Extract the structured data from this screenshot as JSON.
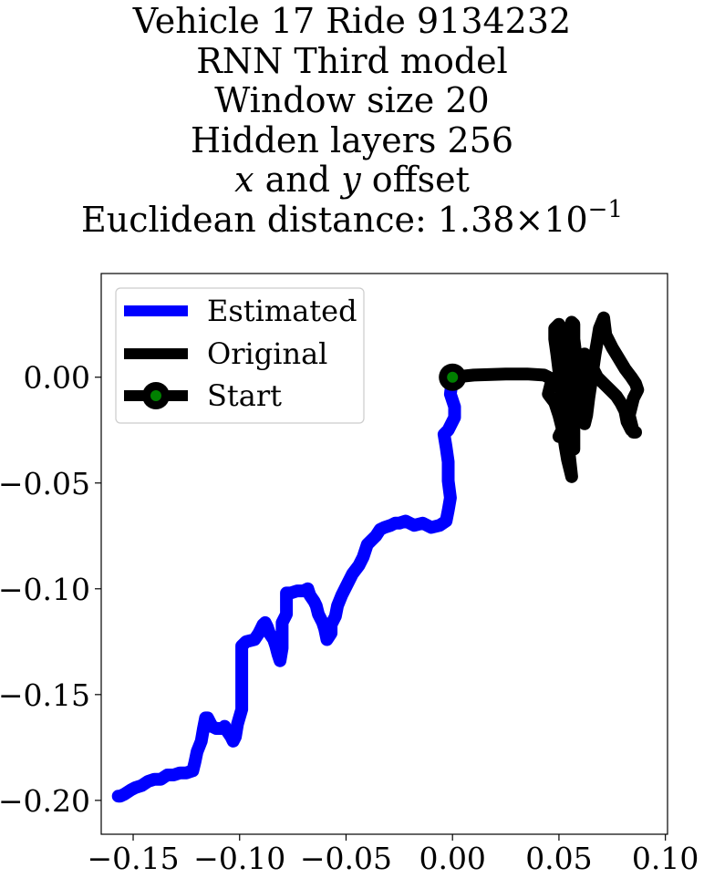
{
  "chart_data": {
    "type": "line",
    "title_lines": [
      "Vehicle 17 Ride 9134232",
      "RNN Third model",
      "Window size 20",
      "Hidden layers 256"
    ],
    "offset_line": {
      "x_var": "x",
      "and": "and",
      "y_var": "y",
      "rest": "offset"
    },
    "distance_line": {
      "prefix": "Euclidean distance: ",
      "mantissa": "1.38",
      "times": "×",
      "base": "10",
      "exponent": "−1"
    },
    "xlabel": "",
    "ylabel": "",
    "xlim": [
      -0.165,
      0.101
    ],
    "ylim": [
      -0.216,
      0.049
    ],
    "xticks": [
      -0.15,
      -0.1,
      -0.05,
      0.0,
      0.05,
      0.1
    ],
    "xtick_labels": [
      "−0.15",
      "−0.10",
      "−0.05",
      "0.00",
      "0.05",
      "0.10"
    ],
    "yticks": [
      0.0,
      -0.05,
      -0.1,
      -0.15,
      -0.2
    ],
    "ytick_labels": [
      "0.00",
      "−0.05",
      "−0.10",
      "−0.15",
      "−0.20"
    ],
    "grid": false,
    "legend_position": "top-left",
    "series": [
      {
        "name": "Estimated",
        "color": "#0000ff",
        "points": [
          [
            0.0,
            0.0
          ],
          [
            -0.001,
            -0.008
          ],
          [
            0.001,
            -0.014
          ],
          [
            0.001,
            -0.019
          ],
          [
            -0.002,
            -0.025
          ],
          [
            -0.004,
            -0.027
          ],
          [
            -0.003,
            -0.033
          ],
          [
            -0.002,
            -0.04
          ],
          [
            -0.002,
            -0.049
          ],
          [
            -0.001,
            -0.057
          ],
          [
            -0.002,
            -0.063
          ],
          [
            -0.003,
            -0.068
          ],
          [
            -0.006,
            -0.07
          ],
          [
            -0.01,
            -0.071
          ],
          [
            -0.014,
            -0.069
          ],
          [
            -0.018,
            -0.07
          ],
          [
            -0.022,
            -0.068
          ],
          [
            -0.025,
            -0.069
          ],
          [
            -0.027,
            -0.069
          ],
          [
            -0.029,
            -0.07
          ],
          [
            -0.032,
            -0.071
          ],
          [
            -0.034,
            -0.072
          ],
          [
            -0.036,
            -0.075
          ],
          [
            -0.04,
            -0.079
          ],
          [
            -0.042,
            -0.085
          ],
          [
            -0.044,
            -0.089
          ],
          [
            -0.047,
            -0.093
          ],
          [
            -0.049,
            -0.097
          ],
          [
            -0.052,
            -0.103
          ],
          [
            -0.054,
            -0.108
          ],
          [
            -0.055,
            -0.113
          ],
          [
            -0.057,
            -0.117
          ],
          [
            -0.057,
            -0.121
          ],
          [
            -0.059,
            -0.124
          ],
          [
            -0.06,
            -0.119
          ],
          [
            -0.061,
            -0.116
          ],
          [
            -0.063,
            -0.112
          ],
          [
            -0.064,
            -0.108
          ],
          [
            -0.065,
            -0.106
          ],
          [
            -0.067,
            -0.103
          ],
          [
            -0.068,
            -0.1
          ],
          [
            -0.07,
            -0.101
          ],
          [
            -0.073,
            -0.101
          ],
          [
            -0.076,
            -0.102
          ],
          [
            -0.078,
            -0.102
          ],
          [
            -0.078,
            -0.108
          ],
          [
            -0.078,
            -0.112
          ],
          [
            -0.08,
            -0.116
          ],
          [
            -0.08,
            -0.121
          ],
          [
            -0.08,
            -0.128
          ],
          [
            -0.081,
            -0.134
          ],
          [
            -0.082,
            -0.131
          ],
          [
            -0.083,
            -0.127
          ],
          [
            -0.084,
            -0.124
          ],
          [
            -0.086,
            -0.121
          ],
          [
            -0.087,
            -0.118
          ],
          [
            -0.088,
            -0.116
          ],
          [
            -0.089,
            -0.117
          ],
          [
            -0.09,
            -0.119
          ],
          [
            -0.091,
            -0.121
          ],
          [
            -0.093,
            -0.124
          ],
          [
            -0.097,
            -0.125
          ],
          [
            -0.099,
            -0.127
          ],
          [
            -0.099,
            -0.132
          ],
          [
            -0.099,
            -0.138
          ],
          [
            -0.099,
            -0.146
          ],
          [
            -0.099,
            -0.152
          ],
          [
            -0.099,
            -0.157
          ],
          [
            -0.101,
            -0.164
          ],
          [
            -0.102,
            -0.17
          ],
          [
            -0.103,
            -0.172
          ],
          [
            -0.104,
            -0.17
          ],
          [
            -0.106,
            -0.167
          ],
          [
            -0.107,
            -0.165
          ],
          [
            -0.108,
            -0.166
          ],
          [
            -0.109,
            -0.166
          ],
          [
            -0.111,
            -0.166
          ],
          [
            -0.113,
            -0.165
          ],
          [
            -0.115,
            -0.161
          ],
          [
            -0.116,
            -0.161
          ],
          [
            -0.117,
            -0.166
          ],
          [
            -0.118,
            -0.172
          ],
          [
            -0.12,
            -0.177
          ],
          [
            -0.121,
            -0.182
          ],
          [
            -0.122,
            -0.186
          ],
          [
            -0.125,
            -0.187
          ],
          [
            -0.128,
            -0.187
          ],
          [
            -0.131,
            -0.188
          ],
          [
            -0.134,
            -0.188
          ],
          [
            -0.137,
            -0.19
          ],
          [
            -0.14,
            -0.19
          ],
          [
            -0.143,
            -0.191
          ],
          [
            -0.146,
            -0.193
          ],
          [
            -0.149,
            -0.194
          ],
          [
            -0.151,
            -0.195
          ],
          [
            -0.154,
            -0.197
          ],
          [
            -0.156,
            -0.198
          ],
          [
            -0.157,
            -0.198
          ]
        ]
      },
      {
        "name": "Original",
        "color": "#000000",
        "points": [
          [
            0.0,
            0.0
          ],
          [
            0.01,
            0.001
          ],
          [
            0.025,
            0.0015
          ],
          [
            0.035,
            0.0015
          ],
          [
            0.043,
            0.001
          ],
          [
            0.047,
            -0.001
          ],
          [
            0.046,
            -0.004
          ],
          [
            0.045,
            -0.008
          ],
          [
            0.048,
            -0.012
          ],
          [
            0.05,
            -0.018
          ],
          [
            0.052,
            -0.026
          ],
          [
            0.053,
            -0.033
          ],
          [
            0.054,
            -0.039
          ],
          [
            0.055,
            -0.043
          ],
          [
            0.056,
            -0.047
          ],
          [
            0.055,
            -0.038
          ],
          [
            0.054,
            -0.028
          ],
          [
            0.053,
            -0.02
          ],
          [
            0.052,
            -0.012
          ],
          [
            0.051,
            -0.005
          ],
          [
            0.05,
            0.003
          ],
          [
            0.049,
            0.011
          ],
          [
            0.048,
            0.018
          ],
          [
            0.048,
            0.023
          ],
          [
            0.05,
            0.025
          ],
          [
            0.052,
            0.021
          ],
          [
            0.052,
            0.014
          ],
          [
            0.052,
            0.007
          ],
          [
            0.053,
            0.0
          ],
          [
            0.054,
            -0.008
          ],
          [
            0.055,
            -0.015
          ],
          [
            0.056,
            -0.022
          ],
          [
            0.057,
            -0.03
          ],
          [
            0.057,
            -0.034
          ],
          [
            0.057,
            -0.025
          ],
          [
            0.056,
            -0.015
          ],
          [
            0.055,
            -0.005
          ],
          [
            0.054,
            0.005
          ],
          [
            0.054,
            0.015
          ],
          [
            0.055,
            0.022
          ],
          [
            0.056,
            0.026
          ],
          [
            0.057,
            0.025
          ],
          [
            0.057,
            0.018
          ],
          [
            0.058,
            0.01
          ],
          [
            0.059,
            0.0
          ],
          [
            0.06,
            -0.008
          ],
          [
            0.061,
            -0.016
          ],
          [
            0.062,
            -0.022
          ],
          [
            0.063,
            -0.018
          ],
          [
            0.064,
            -0.01
          ],
          [
            0.065,
            -0.003
          ],
          [
            0.066,
            0.004
          ],
          [
            0.067,
            0.011
          ],
          [
            0.068,
            0.017
          ],
          [
            0.069,
            0.023
          ],
          [
            0.071,
            0.028
          ],
          [
            0.072,
            0.02
          ],
          [
            0.075,
            0.014
          ],
          [
            0.078,
            0.009
          ],
          [
            0.081,
            0.004
          ],
          [
            0.084,
            0.0
          ],
          [
            0.086,
            -0.003
          ],
          [
            0.087,
            -0.006
          ],
          [
            0.085,
            -0.01
          ],
          [
            0.084,
            -0.014
          ],
          [
            0.083,
            -0.018
          ],
          [
            0.084,
            -0.022
          ],
          [
            0.085,
            -0.026
          ],
          [
            0.086,
            -0.026
          ],
          [
            0.084,
            -0.025
          ],
          [
            0.082,
            -0.021
          ],
          [
            0.081,
            -0.016
          ],
          [
            0.079,
            -0.012
          ],
          [
            0.077,
            -0.009
          ],
          [
            0.074,
            -0.006
          ],
          [
            0.071,
            -0.003
          ],
          [
            0.068,
            0.0
          ],
          [
            0.066,
            0.004
          ],
          [
            0.064,
            0.009
          ],
          [
            0.062,
            0.011
          ],
          [
            0.061,
            0.006
          ],
          [
            0.06,
            0.0
          ],
          [
            0.058,
            -0.006
          ],
          [
            0.056,
            -0.012
          ],
          [
            0.054,
            -0.018
          ],
          [
            0.052,
            -0.024
          ],
          [
            0.05,
            -0.028
          ]
        ]
      },
      {
        "name": "Start",
        "color": "#000000",
        "marker_fill": "#008000",
        "points": [
          [
            0.0,
            0.0
          ]
        ]
      }
    ]
  }
}
